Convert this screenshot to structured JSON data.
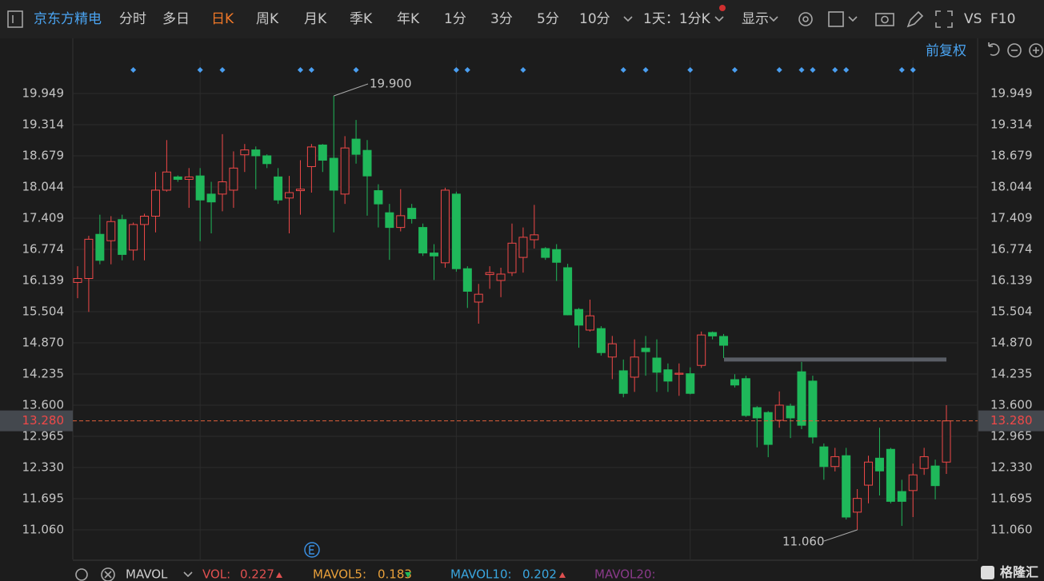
{
  "toolbar": {
    "stock_name": "京东方精电",
    "tabs": [
      "分时",
      "多日",
      "日K",
      "周K",
      "月K",
      "季K",
      "年K",
      "1分",
      "3分",
      "5分",
      "10分"
    ],
    "period": "1天：1分K",
    "display": "显示",
    "vs": "VS",
    "f10": "F10",
    "adjust": "前复权"
  },
  "indicator_bar": {
    "name": "MAVOL",
    "vol_label": "VOL:",
    "vol": 0.227,
    "mavol5_label": "MAVOL5:",
    "mavol5": 0.183,
    "mavol10_label": "MAVOL10:",
    "mavol10": 0.202,
    "mavol20_label": "MAVOL20:"
  },
  "logo": "格隆汇",
  "chart_data": {
    "type": "candlestick",
    "up_color": "#f04848",
    "down_color": "#1fb85a",
    "ylim": [
      10.457,
      20.633
    ],
    "yticks": [
      19.949,
      19.314,
      18.679,
      18.044,
      17.409,
      16.774,
      16.139,
      15.504,
      {
        "value": 14.87,
        "label": "14.870"
      },
      14.235,
      {
        "value": 13.6,
        "label": "13.600"
      },
      12.965,
      {
        "value": 12.33,
        "label": "12.330"
      },
      11.695,
      {
        "value": 11.06,
        "label": "11.060"
      }
    ],
    "grid": true,
    "current_price": {
      "value": 13.28,
      "label": "13.280"
    },
    "hline": 14.53,
    "annotations": [
      {
        "value": 19.9,
        "label": "19.900"
      },
      {
        "value": 11.06,
        "label": "11.060"
      }
    ],
    "open": [
      16.1,
      16.18,
      17.08,
      16.95,
      17.38,
      16.76,
      17.28,
      17.45,
      17.98,
      18.25,
      18.2,
      18.27,
      17.9,
      17.9,
      17.98,
      18.7,
      18.8,
      18.68,
      18.25,
      17.82,
      17.97,
      18.46,
      18.9,
      18.63,
      17.9,
      19.02,
      18.79,
      17.97,
      17.52,
      17.22,
      17.61,
      17.22,
      16.7,
      16.5,
      17.9,
      16.38,
      15.7,
      16.26,
      16.14,
      16.3,
      16.61,
      16.97,
      16.79,
      16.77,
      16.4,
      15.55,
      15.13,
      15.16,
      14.58,
      14.3,
      14.17,
      14.76,
      14.56,
      14.32,
      14.23,
      14.24,
      14.41,
      15.08,
      15.0,
      14.12,
      14.14,
      13.55,
      13.45,
      13.29,
      13.58,
      14.28,
      14.09,
      12.75,
      12.35,
      12.57,
      11.42,
      11.97,
      12.52,
      12.7,
      11.84,
      11.86,
      12.31,
      12.36,
      12.44
    ],
    "high": [
      16.43,
      17.05,
      17.48,
      17.45,
      17.48,
      17.32,
      17.5,
      18.35,
      19.0,
      18.28,
      18.43,
      18.43,
      18.15,
      19.12,
      18.77,
      18.92,
      18.87,
      18.71,
      18.43,
      18.27,
      18.59,
      18.92,
      18.92,
      19.9,
      19.08,
      19.41,
      19.0,
      18.1,
      17.7,
      18.0,
      17.7,
      17.3,
      16.88,
      18.03,
      17.95,
      16.43,
      16.07,
      16.43,
      16.4,
      17.3,
      17.22,
      17.68,
      16.82,
      16.88,
      16.48,
      15.58,
      15.75,
      15.21,
      15.01,
      14.53,
      14.94,
      15.01,
      14.94,
      14.45,
      14.45,
      14.37,
      15.1,
      15.1,
      15.05,
      14.23,
      14.2,
      13.58,
      13.48,
      13.88,
      13.63,
      14.48,
      14.2,
      12.82,
      12.73,
      12.73,
      11.89,
      12.57,
      13.14,
      12.73,
      12.08,
      12.41,
      12.73,
      12.49,
      13.6
    ],
    "low": [
      15.78,
      15.5,
      16.47,
      16.47,
      16.55,
      16.55,
      16.55,
      17.12,
      17.95,
      18.15,
      17.62,
      16.94,
      17.1,
      17.55,
      17.62,
      18.35,
      18.0,
      18.43,
      17.7,
      17.1,
      17.48,
      17.93,
      18.35,
      17.12,
      17.7,
      18.52,
      17.46,
      17.22,
      16.56,
      17.14,
      17.3,
      16.64,
      16.15,
      16.4,
      16.32,
      15.58,
      15.26,
      15.97,
      15.8,
      16.23,
      16.3,
      16.79,
      16.56,
      16.13,
      15.43,
      14.77,
      15.1,
      14.61,
      14.13,
      13.76,
      13.87,
      14.2,
      13.87,
      13.87,
      13.79,
      13.82,
      14.36,
      14.94,
      14.56,
      13.96,
      13.36,
      12.74,
      12.54,
      13.14,
      12.93,
      13.11,
      12.82,
      12.08,
      12.25,
      11.27,
      11.06,
      11.6,
      11.76,
      11.6,
      11.14,
      11.32,
      12.18,
      11.68,
      12.2
    ],
    "close": [
      16.18,
      16.98,
      16.55,
      17.34,
      16.67,
      17.28,
      17.45,
      17.98,
      18.35,
      18.2,
      18.25,
      17.78,
      17.74,
      18.15,
      18.43,
      18.8,
      18.68,
      18.52,
      17.78,
      17.93,
      18.0,
      18.86,
      18.59,
      17.98,
      18.84,
      18.71,
      18.27,
      17.7,
      17.22,
      17.46,
      17.4,
      16.7,
      16.64,
      17.98,
      16.38,
      15.92,
      15.86,
      16.3,
      16.27,
      16.9,
      17.02,
      17.07,
      16.61,
      16.51,
      15.44,
      15.23,
      15.42,
      14.67,
      14.85,
      13.84,
      14.58,
      14.69,
      14.27,
      14.09,
      14.25,
      13.84,
      15.03,
      15.01,
      14.82,
      14.01,
      13.39,
      13.34,
      12.8,
      13.6,
      13.34,
      13.19,
      12.95,
      12.35,
      12.55,
      11.32,
      11.7,
      12.44,
      12.26,
      11.64,
      11.64,
      12.18,
      12.55,
      11.96,
      13.28
    ]
  }
}
